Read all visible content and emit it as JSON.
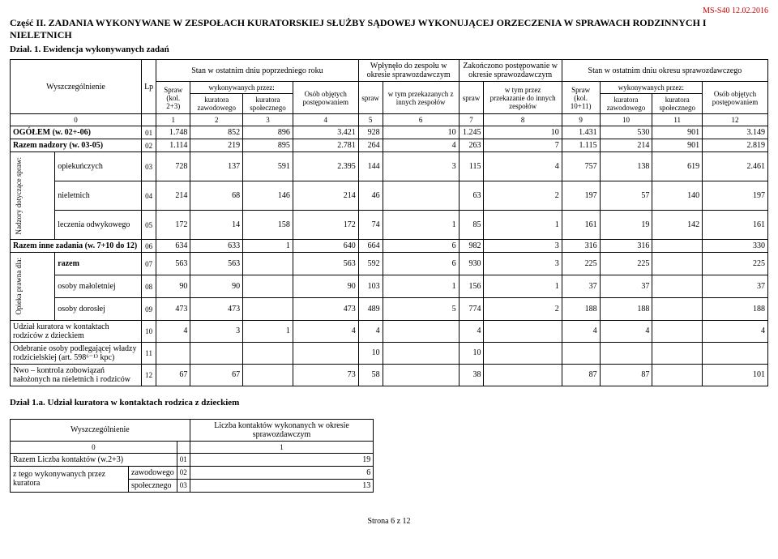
{
  "header_code": "MS-S40 12.02.2016",
  "section_title": "Część II. ZADANIA WYKONYWANE W ZESPOŁACH KURATORSKIEJ SŁUŻBY SĄDOWEJ WYKONUJĄCEJ ORZECZENIA W SPRAWACH RODZINNYCH I NIELETNICH",
  "subsection": "Dział. 1. Ewidencja wykonywanych zadań",
  "t1": {
    "h": {
      "wysz": "Wyszczególnienie",
      "lp": "Lp",
      "stan_pop": "Stan w ostatnim dniu poprzedniego roku",
      "wplynelo": "Wpłynęło do zespołu w okresie sprawozdawczym",
      "zakonczono": "Zakończono postępowanie w okresie sprawozdawczym",
      "stan_spr": "Stan w ostatnim dniu okresu sprawozdawczego",
      "spraw23": "Spraw (kol. 2+3)",
      "wyk": "wykonywanych przez:",
      "osob": "Osób objętych postępowaniem",
      "spraw": "spraw",
      "wtym": "w tym przekazanych z innych zespołów",
      "wtym2": "w tym przez przekazanie do innych zespołów",
      "spraw1011": "Spraw (kol. 10+11)",
      "kz": "kuratora zawodowego",
      "ks": "kuratora społecznego"
    },
    "colnums": [
      "0",
      "1",
      "2",
      "3",
      "4",
      "5",
      "6",
      "7",
      "8",
      "9",
      "10",
      "11",
      "12"
    ],
    "rows": [
      {
        "label": "OGÓŁEM (w. 02+-06)",
        "lp": "01",
        "v": [
          "1.748",
          "852",
          "896",
          "3.421",
          "928",
          "10",
          "1.245",
          "10",
          "1.431",
          "530",
          "901",
          "3.149"
        ]
      },
      {
        "label": "Razem nadzory (w. 03-05)",
        "lp": "02",
        "v": [
          "1.114",
          "219",
          "895",
          "2.781",
          "264",
          "4",
          "263",
          "7",
          "1.115",
          "214",
          "901",
          "2.819"
        ]
      },
      {
        "group": "Nadzory dotyczące spraw:",
        "label": "opiekuńczych",
        "lp": "03",
        "v": [
          "728",
          "137",
          "591",
          "2.395",
          "144",
          "3",
          "115",
          "4",
          "757",
          "138",
          "619",
          "2.461"
        ]
      },
      {
        "label": "nieletnich",
        "lp": "04",
        "v": [
          "214",
          "68",
          "146",
          "214",
          "46",
          "",
          "63",
          "2",
          "197",
          "57",
          "140",
          "197"
        ]
      },
      {
        "label": "leczenia odwykowego",
        "lp": "05",
        "v": [
          "172",
          "14",
          "158",
          "172",
          "74",
          "1",
          "85",
          "1",
          "161",
          "19",
          "142",
          "161"
        ]
      },
      {
        "label": "Razem inne zadania (w. 7+10 do 12)",
        "lp": "06",
        "v": [
          "634",
          "633",
          "1",
          "640",
          "664",
          "6",
          "982",
          "3",
          "316",
          "316",
          "",
          "330"
        ]
      },
      {
        "group": "Opieka prawna dla:",
        "label": "razem",
        "lp": "07",
        "v": [
          "563",
          "563",
          "",
          "563",
          "592",
          "6",
          "930",
          "3",
          "225",
          "225",
          "",
          "225"
        ]
      },
      {
        "label": "osoby małoletniej",
        "lp": "08",
        "v": [
          "90",
          "90",
          "",
          "90",
          "103",
          "1",
          "156",
          "1",
          "37",
          "37",
          "",
          "37"
        ]
      },
      {
        "label": "osoby dorosłej",
        "lp": "09",
        "v": [
          "473",
          "473",
          "",
          "473",
          "489",
          "5",
          "774",
          "2",
          "188",
          "188",
          "",
          "188"
        ]
      },
      {
        "label": "Udział kuratora w kontaktach rodziców z dzieckiem",
        "lp": "10",
        "v": [
          "4",
          "3",
          "1",
          "4",
          "4",
          "",
          "4",
          "",
          "4",
          "4",
          "",
          "4"
        ]
      },
      {
        "label": "Odebranie osoby podlegającej władzy rodzicielskiej (art. 598⁶⁻¹³ kpc)",
        "lp": "11",
        "v": [
          "",
          "",
          "",
          "",
          "10",
          "",
          "10",
          "",
          "",
          "",
          "",
          ""
        ]
      },
      {
        "label": "Nwo – kontrola zobowiązań nałożonych na nieletnich i rodziców",
        "lp": "12",
        "v": [
          "67",
          "67",
          "",
          "73",
          "58",
          "",
          "38",
          "",
          "87",
          "87",
          "",
          "101"
        ]
      }
    ]
  },
  "sub2_title": "Dział 1.a. Udział kuratora w kontaktach rodzica z dzieckiem",
  "t2": {
    "h": {
      "wysz": "Wyszczególnienie",
      "liczba": "Liczba kontaktów wykonanych w okresie sprawozdawczym"
    },
    "cn": [
      "0",
      "1"
    ],
    "rows": [
      {
        "a": "Razem Liczba kontaktów (w.2+3)",
        "b": "",
        "lp": "01",
        "v": "19"
      },
      {
        "a": "z tego wykonywanych przez kuratora",
        "b": "zawodowego",
        "lp": "02",
        "v": "6"
      },
      {
        "a": "",
        "b": "społecznego",
        "lp": "03",
        "v": "13"
      }
    ]
  },
  "footer": "Strona 6 z 12"
}
